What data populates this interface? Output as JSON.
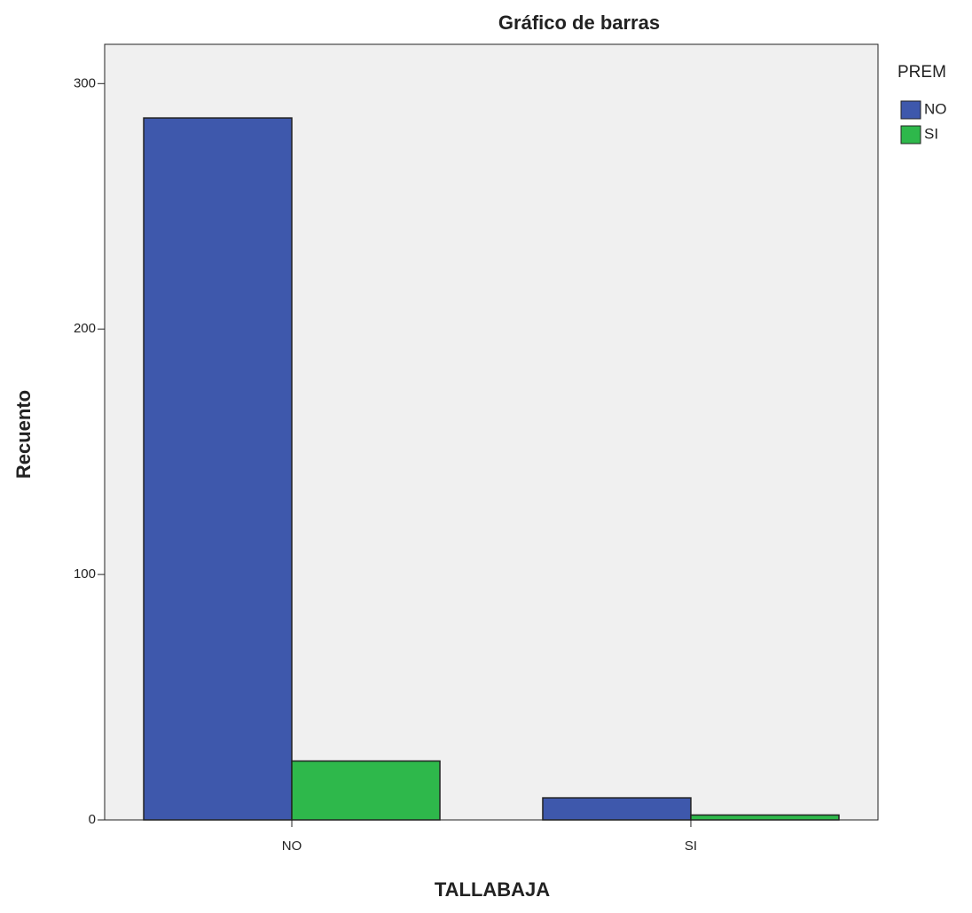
{
  "chart_data": {
    "type": "bar",
    "title": "Gráfico de barras",
    "x_label": "TALLABAJA",
    "y_label": "Recuento",
    "legend_title": "PREM",
    "categories": [
      "NO",
      "SI"
    ],
    "series": [
      {
        "name": "NO",
        "color": "#3e58ac",
        "values": [
          286,
          9
        ]
      },
      {
        "name": "SI",
        "color": "#2eb84b",
        "values": [
          24,
          2
        ]
      }
    ],
    "ylim": [
      0,
      316
    ],
    "yticks": [
      0,
      100,
      200,
      300
    ],
    "legend": "right"
  }
}
